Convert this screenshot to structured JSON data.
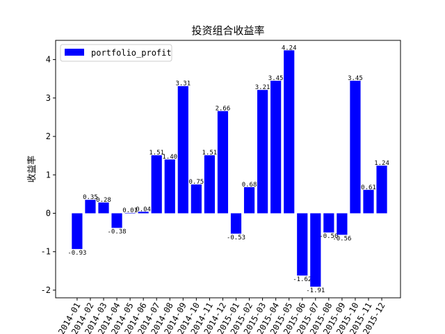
{
  "chart_data": {
    "type": "bar",
    "title": "投资组合收益率",
    "xlabel": "",
    "ylabel": "收益率",
    "categories": [
      "2014-01",
      "2014-02",
      "2014-03",
      "2014-04",
      "2014-05",
      "2014-06",
      "2014-07",
      "2014-08",
      "2014-09",
      "2014-10",
      "2014-11",
      "2014-12",
      "2015-01",
      "2015-02",
      "2015-03",
      "2015-04",
      "2015-05",
      "2015-06",
      "2015-07",
      "2015-08",
      "2015-09",
      "2015-10",
      "2015-11",
      "2015-12"
    ],
    "series": [
      {
        "name": "portfolio_profit",
        "color": "#0000ff",
        "values": [
          -0.93,
          0.35,
          0.28,
          -0.38,
          0.01,
          0.04,
          1.51,
          1.4,
          3.31,
          0.75,
          1.51,
          2.66,
          -0.53,
          0.68,
          3.21,
          3.45,
          4.24,
          -1.62,
          -1.91,
          -0.5,
          -0.56,
          3.45,
          0.61,
          1.24
        ],
        "labels": [
          "-0.93",
          "0.35",
          "0.28",
          "-0.38",
          "0.01",
          "0.04",
          "1.51",
          "1.40",
          "3.31",
          "0.75",
          "1.51",
          "2.66",
          "-0.53",
          "0.68",
          "3.21",
          "3.45",
          "4.24",
          "-1.62",
          "-1.91",
          "-0.50",
          "-0.56",
          "3.45",
          "0.61",
          "1.24"
        ]
      }
    ],
    "yticks": [
      -2,
      -1,
      0,
      1,
      2,
      3,
      4
    ],
    "ylim": [
      -2.2,
      4.5
    ],
    "grid": false,
    "legend": "top-left"
  }
}
